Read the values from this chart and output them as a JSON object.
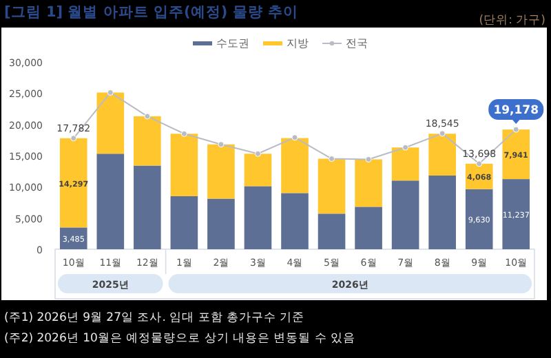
{
  "chart_data": {
    "type": "bar",
    "stacked": true,
    "title": "[그림 1] 월별 아파트 입주(예정) 물량 추이",
    "subtitle": "(단위: 가구)",
    "categories": [
      "10월",
      "11월",
      "12월",
      "1월",
      "2월",
      "3월",
      "4월",
      "5월",
      "6월",
      "7월",
      "8월",
      "9월",
      "10월"
    ],
    "series": [
      {
        "name": "수도권",
        "color": "#5d6f94",
        "values": [
          3485,
          15300,
          13400,
          8500,
          8100,
          10100,
          9000,
          5700,
          6800,
          11000,
          11800,
          9630,
          11237
        ],
        "value_labels": [
          "3,485",
          null,
          null,
          null,
          null,
          null,
          null,
          null,
          null,
          null,
          null,
          "9,630",
          "11,237"
        ]
      },
      {
        "name": "지방",
        "color": "#ffc62e",
        "values": [
          14297,
          9800,
          7900,
          10000,
          8700,
          5200,
          8800,
          8800,
          7600,
          5300,
          6700,
          4068,
          7941
        ],
        "value_labels": [
          "14,297",
          null,
          null,
          null,
          null,
          null,
          null,
          null,
          null,
          null,
          null,
          "4,068",
          "7,941"
        ]
      },
      {
        "name": "전국",
        "type": "line",
        "color": "#b9bcc4",
        "marker": "circle",
        "values": [
          17782,
          25100,
          21300,
          18500,
          16800,
          15300,
          17900,
          14500,
          14400,
          16300,
          18545,
          13698,
          19178
        ],
        "value_labels": [
          "17,782",
          null,
          null,
          null,
          null,
          null,
          null,
          null,
          null,
          null,
          "18,545",
          "13,698",
          "19,178"
        ]
      }
    ],
    "ylim": [
      0,
      30000
    ],
    "yticks": [
      0,
      {
        "value": 5000,
        "label": "5,000"
      },
      {
        "value": 10000,
        "label": "10,000"
      },
      {
        "value": 15000,
        "label": "15,000"
      },
      {
        "value": 20000,
        "label": "20,000"
      },
      {
        "value": 25000,
        "label": "25,000"
      },
      {
        "value": 30000,
        "label": "30,000"
      }
    ],
    "grid": false,
    "legend": "top",
    "annotations": [
      "2025년",
      "2026년",
      "(주1) 2026년 9월 27일 조사. 임대 포함 총가구수 기준",
      "(주2) 2026년 10월은 예정물량으로 상기 내용은 변동될 수 있음"
    ]
  }
}
